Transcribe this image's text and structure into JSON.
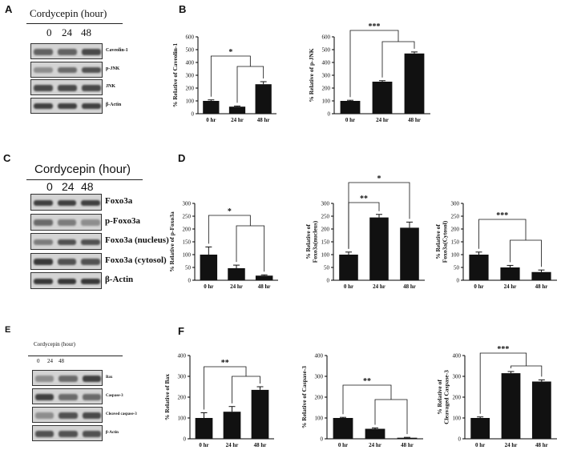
{
  "panels": {
    "A": {
      "label": "A",
      "header": "Cordycepin (hour)",
      "lanes": [
        "0",
        "24",
        "48"
      ],
      "strips": [
        "Caveolin-1",
        "p-JNK",
        "JNK",
        "β-Actin"
      ],
      "band_intensity": [
        [
          0.6,
          0.6,
          0.75
        ],
        [
          0.35,
          0.55,
          0.7
        ],
        [
          0.75,
          0.75,
          0.75
        ],
        [
          0.8,
          0.8,
          0.8
        ]
      ]
    },
    "C": {
      "label": "C",
      "header": "Cordycepin  (hour)",
      "lanes": [
        "0",
        "24",
        "48"
      ],
      "strips": [
        "Foxo3a",
        "p-Foxo3a",
        "Foxo3a (nucleus)",
        "Foxo3a (cytosol)",
        "β-Actin"
      ],
      "band_intensity": [
        [
          0.8,
          0.8,
          0.8
        ],
        [
          0.55,
          0.45,
          0.35
        ],
        [
          0.45,
          0.7,
          0.7
        ],
        [
          0.85,
          0.7,
          0.7
        ],
        [
          0.85,
          0.85,
          0.85
        ]
      ]
    },
    "E": {
      "label": "E",
      "header": "Cordycepin (hour)",
      "lanes": [
        "0",
        "24",
        "48"
      ],
      "strips": [
        "Bax",
        "Caspase-3",
        "Cleaved caspase-3",
        "β-Actin"
      ],
      "band_intensity": [
        [
          0.35,
          0.55,
          0.8
        ],
        [
          0.8,
          0.55,
          0.55
        ],
        [
          0.35,
          0.7,
          0.75
        ],
        [
          0.7,
          0.7,
          0.7
        ]
      ]
    },
    "B": {
      "label": "B"
    },
    "D": {
      "label": "D"
    },
    "F": {
      "label": "F"
    }
  },
  "chart_data": [
    {
      "id": "B1",
      "type": "bar",
      "title": "",
      "ylabel": "% Relative of Caveolin-1",
      "categories": [
        "0 hr",
        "24 hr",
        "48 hr"
      ],
      "values": [
        100,
        55,
        230
      ],
      "errors": [
        8,
        5,
        20
      ],
      "ylim": [
        0,
        600
      ],
      "yticks": [
        0,
        100,
        200,
        300,
        400,
        500,
        600
      ],
      "annotations": [
        {
          "text": "*",
          "bars": [
            0,
            2
          ]
        }
      ]
    },
    {
      "id": "B2",
      "type": "bar",
      "title": "",
      "ylabel": "% Relative of p-JNK",
      "categories": [
        "0 hr",
        "24 hr",
        "48 hr"
      ],
      "values": [
        100,
        250,
        470
      ],
      "errors": [
        5,
        8,
        12
      ],
      "ylim": [
        0,
        600
      ],
      "yticks": [
        0,
        100,
        200,
        300,
        400,
        500,
        600
      ],
      "annotations": [
        {
          "text": "***",
          "bars": [
            0,
            2
          ]
        }
      ]
    },
    {
      "id": "D1",
      "type": "bar",
      "title": "",
      "ylabel": "% Relative of p-Foxo3a",
      "categories": [
        "0 hr",
        "24 hr",
        "48 hr"
      ],
      "values": [
        100,
        47,
        18
      ],
      "errors": [
        30,
        12,
        3
      ],
      "ylim": [
        0,
        300
      ],
      "yticks": [
        0,
        50,
        100,
        150,
        200,
        250,
        300
      ],
      "annotations": [
        {
          "text": "*",
          "bars": [
            0,
            2
          ]
        }
      ]
    },
    {
      "id": "D2",
      "type": "bar",
      "title": "",
      "ylabel": "% Relative of Foxo3a(nucleus)",
      "categories": [
        "0 hr",
        "24 hr",
        "48 hr"
      ],
      "values": [
        100,
        245,
        205
      ],
      "errors": [
        10,
        12,
        22
      ],
      "ylim": [
        0,
        300
      ],
      "yticks": [
        0,
        50,
        100,
        150,
        200,
        250,
        300
      ],
      "annotations": [
        {
          "text": "**",
          "bars": [
            0,
            1
          ]
        },
        {
          "text": "*",
          "bars": [
            0,
            2
          ]
        }
      ]
    },
    {
      "id": "D3",
      "type": "bar",
      "title": "",
      "ylabel": "% Relative of Foxo3a(Cytosol)",
      "categories": [
        "0 hr",
        "24 hr",
        "48 hr"
      ],
      "values": [
        100,
        50,
        32
      ],
      "errors": [
        10,
        8,
        8
      ],
      "ylim": [
        0,
        300
      ],
      "yticks": [
        0,
        50,
        100,
        150,
        200,
        250,
        300
      ],
      "annotations": [
        {
          "text": "***",
          "bars": [
            0,
            2
          ]
        }
      ]
    },
    {
      "id": "F1",
      "type": "bar",
      "title": "",
      "ylabel": "% Relative of Bax",
      "categories": [
        "0 hr",
        "24 hr",
        "48 hr"
      ],
      "values": [
        100,
        130,
        235
      ],
      "errors": [
        25,
        25,
        15
      ],
      "ylim": [
        0,
        400
      ],
      "yticks": [
        0,
        100,
        200,
        300,
        400
      ],
      "annotations": [
        {
          "text": "**",
          "bars": [
            0,
            2
          ]
        }
      ]
    },
    {
      "id": "F2",
      "type": "bar",
      "title": "",
      "ylabel": "% Relative of Caspase-3",
      "categories": [
        "0 hr",
        "24 hr",
        "48 hr"
      ],
      "values": [
        100,
        48,
        5
      ],
      "errors": [
        3,
        4,
        2
      ],
      "ylim": [
        0,
        400
      ],
      "yticks": [
        0,
        100,
        200,
        300,
        400
      ],
      "annotations": [
        {
          "text": "**",
          "bars": [
            0,
            2
          ]
        }
      ]
    },
    {
      "id": "F3",
      "type": "bar",
      "title": "",
      "ylabel": "% Relative of Cleavaged Caspase-3",
      "categories": [
        "0 hr",
        "24 hr",
        "48 hr"
      ],
      "values": [
        100,
        315,
        275
      ],
      "errors": [
        5,
        8,
        8
      ],
      "ylim": [
        0,
        400
      ],
      "yticks": [
        0,
        100,
        200,
        300,
        400
      ],
      "annotations": [
        {
          "text": "***",
          "bars": [
            0,
            2
          ]
        }
      ]
    }
  ]
}
